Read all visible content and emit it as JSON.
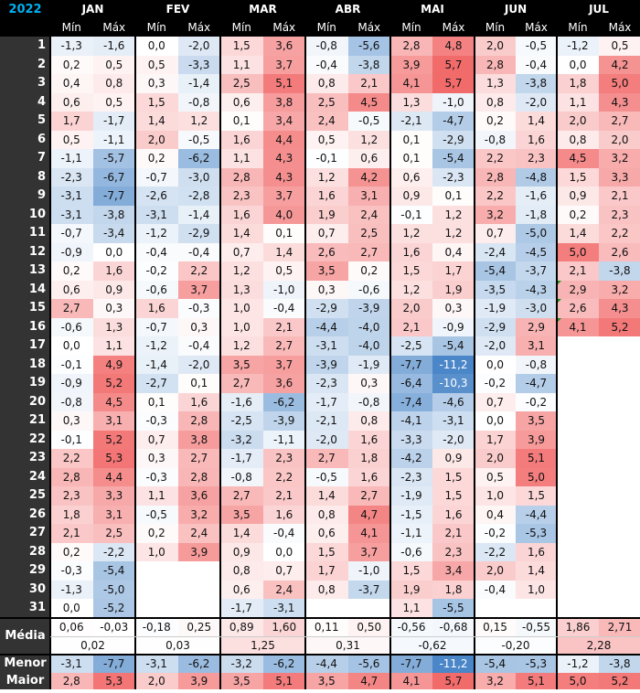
{
  "year": "2022",
  "months": [
    "JAN",
    "FEV",
    "MAR",
    "ABR",
    "MAI",
    "JUN",
    "JUL"
  ],
  "sub_min": "Mín",
  "sub_max": "Máx",
  "days": [
    "1",
    "2",
    "3",
    "4",
    "5",
    "6",
    "7",
    "8",
    "9",
    "10",
    "11",
    "12",
    "13",
    "14",
    "15",
    "16",
    "17",
    "18",
    "19",
    "20",
    "21",
    "22",
    "23",
    "24",
    "25",
    "26",
    "27",
    "28",
    "29",
    "30",
    "31"
  ],
  "scale": {
    "min": -11.2,
    "max": 5.7
  },
  "colors": {
    "neg": "#4a86c8",
    "pos": "#f26b6b",
    "zero": "#ffffff",
    "dark": "#000000",
    "label_bg": "#333333",
    "header_text": "#ffffff",
    "year_text": "#00b0f0",
    "flag": "#1e8f1e"
  },
  "data": [
    [
      [
        -1.3,
        -1.6
      ],
      [
        0.0,
        -2.0
      ],
      [
        1.5,
        3.6
      ],
      [
        -0.8,
        -5.6
      ],
      [
        2.8,
        4.8
      ],
      [
        2.0,
        -0.5
      ],
      [
        -1.2,
        0.5
      ]
    ],
    [
      [
        0.2,
        0.5
      ],
      [
        0.5,
        -3.3
      ],
      [
        1.1,
        3.7
      ],
      [
        -0.4,
        -3.8
      ],
      [
        3.9,
        5.7
      ],
      [
        2.8,
        -0.4
      ],
      [
        0.0,
        4.2
      ]
    ],
    [
      [
        0.4,
        0.8
      ],
      [
        0.3,
        -1.4
      ],
      [
        2.5,
        5.1
      ],
      [
        0.8,
        2.1
      ],
      [
        4.1,
        5.7
      ],
      [
        1.3,
        -3.8
      ],
      [
        1.8,
        5.0
      ]
    ],
    [
      [
        0.6,
        0.5
      ],
      [
        1.5,
        -0.8
      ],
      [
        0.6,
        3.8
      ],
      [
        2.5,
        4.5
      ],
      [
        1.3,
        -1.0
      ],
      [
        0.8,
        -2.0
      ],
      [
        1.1,
        4.3
      ]
    ],
    [
      [
        1.7,
        -1.7
      ],
      [
        1.4,
        1.2
      ],
      [
        0.1,
        3.4
      ],
      [
        2.4,
        -0.5
      ],
      [
        -2.1,
        -4.7
      ],
      [
        0.2,
        1.4
      ],
      [
        2.0,
        2.7
      ]
    ],
    [
      [
        0.5,
        -1.1
      ],
      [
        2.0,
        -0.5
      ],
      [
        1.6,
        4.4
      ],
      [
        0.5,
        1.2
      ],
      [
        0.1,
        -2.9
      ],
      [
        -0.8,
        1.6
      ],
      [
        0.8,
        2.0
      ]
    ],
    [
      [
        -1.1,
        -5.7
      ],
      [
        0.2,
        -6.2
      ],
      [
        1.1,
        4.3
      ],
      [
        -0.1,
        0.6
      ],
      [
        0.1,
        -5.4
      ],
      [
        2.2,
        2.3
      ],
      [
        4.5,
        3.2
      ]
    ],
    [
      [
        -2.3,
        -6.7
      ],
      [
        -0.7,
        -3.0
      ],
      [
        2.8,
        4.3
      ],
      [
        1.2,
        4.2
      ],
      [
        0.6,
        -2.3
      ],
      [
        2.8,
        -4.8
      ],
      [
        1.5,
        3.3
      ]
    ],
    [
      [
        -3.1,
        -7.7
      ],
      [
        -2.6,
        -2.8
      ],
      [
        2.3,
        3.7
      ],
      [
        1.6,
        3.1
      ],
      [
        0.9,
        0.1
      ],
      [
        2.2,
        -1.6
      ],
      [
        0.9,
        2.1
      ]
    ],
    [
      [
        -3.1,
        -3.8
      ],
      [
        -3.1,
        -1.4
      ],
      [
        1.6,
        4.0
      ],
      [
        1.9,
        2.4
      ],
      [
        -0.1,
        1.2
      ],
      [
        3.2,
        -1.8
      ],
      [
        0.2,
        2.3
      ]
    ],
    [
      [
        -0.7,
        -3.4
      ],
      [
        -1.2,
        -2.9
      ],
      [
        1.4,
        0.1
      ],
      [
        0.7,
        2.5
      ],
      [
        1.2,
        1.2
      ],
      [
        0.7,
        -5.0
      ],
      [
        1.4,
        2.2
      ]
    ],
    [
      [
        -0.9,
        0.0
      ],
      [
        -0.4,
        -0.4
      ],
      [
        0.7,
        1.4
      ],
      [
        2.6,
        2.7
      ],
      [
        1.6,
        0.4
      ],
      [
        -2.4,
        -4.5
      ],
      [
        5.0,
        2.6
      ]
    ],
    [
      [
        0.2,
        1.6
      ],
      [
        -0.2,
        2.2
      ],
      [
        1.2,
        0.5
      ],
      [
        3.5,
        0.2
      ],
      [
        1.5,
        1.7
      ],
      [
        -5.4,
        -3.7
      ],
      [
        2.1,
        -3.8
      ]
    ],
    [
      [
        0.6,
        0.9
      ],
      [
        -0.6,
        3.7
      ],
      [
        1.3,
        -1.0
      ],
      [
        0.3,
        -0.6
      ],
      [
        1.2,
        1.9
      ],
      [
        -3.5,
        -4.3
      ],
      [
        2.9,
        3.2
      ]
    ],
    [
      [
        2.7,
        0.3
      ],
      [
        1.6,
        -0.3
      ],
      [
        1.0,
        -0.4
      ],
      [
        -2.9,
        -3.9
      ],
      [
        2.0,
        0.3
      ],
      [
        -1.9,
        -3.0
      ],
      [
        2.6,
        4.3
      ]
    ],
    [
      [
        -0.6,
        1.3
      ],
      [
        -0.7,
        0.3
      ],
      [
        1.0,
        2.1
      ],
      [
        -4.4,
        -4.0
      ],
      [
        2.1,
        -0.9
      ],
      [
        -2.9,
        2.9
      ],
      [
        4.1,
        5.2
      ]
    ],
    [
      [
        0.0,
        1.1
      ],
      [
        -1.2,
        -0.4
      ],
      [
        1.2,
        2.7
      ],
      [
        -3.1,
        -4.0
      ],
      [
        -2.5,
        -5.4
      ],
      [
        -2.0,
        3.1
      ],
      null
    ],
    [
      [
        -0.1,
        4.9
      ],
      [
        -1.4,
        -2.0
      ],
      [
        3.5,
        3.7
      ],
      [
        -3.9,
        -1.9
      ],
      [
        -7.7,
        -11.2
      ],
      [
        0.0,
        -0.8
      ],
      null
    ],
    [
      [
        -0.9,
        5.2
      ],
      [
        -2.7,
        0.1
      ],
      [
        2.7,
        3.6
      ],
      [
        -2.3,
        0.3
      ],
      [
        -6.4,
        -10.3
      ],
      [
        -0.2,
        -4.7
      ],
      null
    ],
    [
      [
        -0.8,
        4.5
      ],
      [
        0.1,
        1.6
      ],
      [
        -1.6,
        -6.2
      ],
      [
        -1.7,
        -0.8
      ],
      [
        -7.4,
        -4.6
      ],
      [
        0.7,
        -0.2
      ],
      null
    ],
    [
      [
        0.3,
        3.1
      ],
      [
        -0.3,
        2.8
      ],
      [
        -2.5,
        -3.9
      ],
      [
        -2.1,
        0.8
      ],
      [
        -4.1,
        -3.1
      ],
      [
        0.0,
        3.5
      ],
      null
    ],
    [
      [
        -0.1,
        5.2
      ],
      [
        0.7,
        3.8
      ],
      [
        -3.2,
        -1.1
      ],
      [
        -2.0,
        1.6
      ],
      [
        -3.3,
        -2.0
      ],
      [
        1.7,
        3.9
      ],
      null
    ],
    [
      [
        2.2,
        5.3
      ],
      [
        0.3,
        2.7
      ],
      [
        -1.7,
        2.3
      ],
      [
        2.7,
        1.8
      ],
      [
        -4.2,
        0.9
      ],
      [
        2.0,
        5.1
      ],
      null
    ],
    [
      [
        2.8,
        4.4
      ],
      [
        -0.3,
        2.8
      ],
      [
        -0.8,
        2.2
      ],
      [
        -0.5,
        1.6
      ],
      [
        -2.3,
        1.5
      ],
      [
        0.5,
        5.0
      ],
      null
    ],
    [
      [
        2.3,
        3.3
      ],
      [
        1.1,
        3.6
      ],
      [
        2.7,
        2.1
      ],
      [
        1.4,
        2.7
      ],
      [
        -1.9,
        1.5
      ],
      [
        1.0,
        1.5
      ],
      null
    ],
    [
      [
        1.8,
        3.1
      ],
      [
        -0.5,
        3.2
      ],
      [
        3.5,
        1.6
      ],
      [
        0.8,
        4.7
      ],
      [
        -1.5,
        1.6
      ],
      [
        0.4,
        -4.4
      ],
      null
    ],
    [
      [
        2.1,
        2.5
      ],
      [
        0.2,
        2.4
      ],
      [
        1.4,
        -0.4
      ],
      [
        0.6,
        4.1
      ],
      [
        -1.1,
        2.1
      ],
      [
        -0.2,
        -5.3
      ],
      null
    ],
    [
      [
        0.2,
        -2.2
      ],
      [
        1.0,
        3.9
      ],
      [
        0.9,
        0.0
      ],
      [
        1.5,
        3.7
      ],
      [
        -0.6,
        2.3
      ],
      [
        -2.2,
        1.6
      ],
      null
    ],
    [
      [
        -0.3,
        -5.4
      ],
      null,
      [
        0.8,
        0.7
      ],
      [
        1.7,
        -1.0
      ],
      [
        1.5,
        3.4
      ],
      [
        2.0,
        1.4
      ],
      null
    ],
    [
      [
        -1.3,
        -5.0
      ],
      null,
      [
        0.6,
        2.4
      ],
      [
        0.8,
        -3.7
      ],
      [
        1.9,
        1.8
      ],
      [
        -0.4,
        1.0
      ],
      null
    ],
    [
      [
        0.0,
        -5.2
      ],
      null,
      [
        -1.7,
        -3.1
      ],
      null,
      [
        1.1,
        -5.5
      ],
      null,
      null
    ]
  ],
  "flags": [
    [
      13,
      6
    ],
    [
      14,
      6
    ],
    [
      15,
      6
    ]
  ],
  "summary": {
    "media_label": "Média",
    "menor_label": "Menor",
    "maior_label": "Maior",
    "media_values": [
      [
        0.06,
        -0.03
      ],
      [
        -0.18,
        0.25
      ],
      [
        0.89,
        1.6
      ],
      [
        0.11,
        0.5
      ],
      [
        -0.56,
        -0.68
      ],
      [
        0.15,
        -0.55
      ],
      [
        1.86,
        2.71
      ]
    ],
    "media_display": [
      [
        "0,06",
        "-0,03"
      ],
      [
        "-0,18",
        "0,25"
      ],
      [
        "0,89",
        "1,60"
      ],
      [
        "0,11",
        "0,50"
      ],
      [
        "-0,56",
        "-0,68"
      ],
      [
        "0,15",
        "-0,55"
      ],
      [
        "1,86",
        "2,71"
      ]
    ],
    "media_combined": [
      0.02,
      0.03,
      1.25,
      0.31,
      -0.62,
      -0.2,
      2.28
    ],
    "media_combined_display": [
      "0,02",
      "0,03",
      "1,25",
      "0,31",
      "-0,62",
      "-0,20",
      "2,28"
    ],
    "menor": [
      [
        -3.1,
        -7.7
      ],
      [
        -3.1,
        -6.2
      ],
      [
        -3.2,
        -6.2
      ],
      [
        -4.4,
        -5.6
      ],
      [
        -7.7,
        -11.2
      ],
      [
        -5.4,
        -5.3
      ],
      [
        -1.2,
        -3.8
      ]
    ],
    "maior": [
      [
        2.8,
        5.3
      ],
      [
        2.0,
        3.9
      ],
      [
        3.5,
        5.1
      ],
      [
        3.5,
        4.7
      ],
      [
        4.1,
        5.7
      ],
      [
        3.2,
        5.1
      ],
      [
        5.0,
        5.2
      ]
    ]
  }
}
